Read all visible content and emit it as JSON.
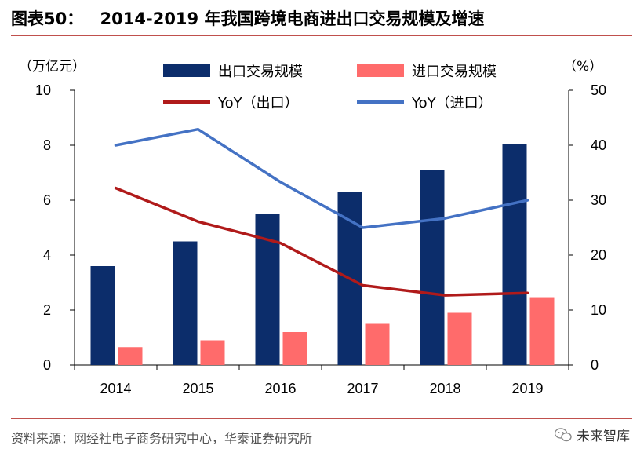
{
  "header": {
    "title_prefix": "图表50：",
    "title_text": "2014-2019 年我国跨境电商进出口交易规模及增速"
  },
  "footer": {
    "source": "资料来源：网经社电子商务研究中心，华泰证券研究所",
    "watermark": "未来智库"
  },
  "chart_data": {
    "type": "bar",
    "title": "2014-2019 年我国跨境电商进出口交易规模及增速",
    "categories": [
      "2014",
      "2015",
      "2016",
      "2017",
      "2018",
      "2019"
    ],
    "ylabel_left": "（万亿元）",
    "ylabel_right": "（%）",
    "ylim_left": [
      0,
      10
    ],
    "ylim_right": [
      0,
      50
    ],
    "yticks_left": [
      "0",
      "2",
      "4",
      "6",
      "8",
      "10"
    ],
    "yticks_right": [
      "0",
      "10",
      "20",
      "30",
      "40",
      "50"
    ],
    "series": [
      {
        "name": "出口交易规模",
        "type": "bar",
        "axis": "left",
        "color": "#0c2d6b",
        "values": [
          3.6,
          4.5,
          5.5,
          6.3,
          7.1,
          8.03
        ]
      },
      {
        "name": "进口交易规模",
        "type": "bar",
        "axis": "left",
        "color": "#ff6b6b",
        "values": [
          0.65,
          0.9,
          1.2,
          1.5,
          1.9,
          2.47
        ]
      },
      {
        "name": "YoY（出口）",
        "type": "line",
        "axis": "right",
        "color": "#b01a1a",
        "values": [
          32.2,
          26.1,
          22.2,
          14.5,
          12.7,
          13.1
        ]
      },
      {
        "name": "YoY（进口）",
        "type": "line",
        "axis": "right",
        "color": "#4472c4",
        "values": [
          40.0,
          42.9,
          33.3,
          25.0,
          26.7,
          30.0
        ]
      }
    ],
    "legend_position": "top"
  }
}
